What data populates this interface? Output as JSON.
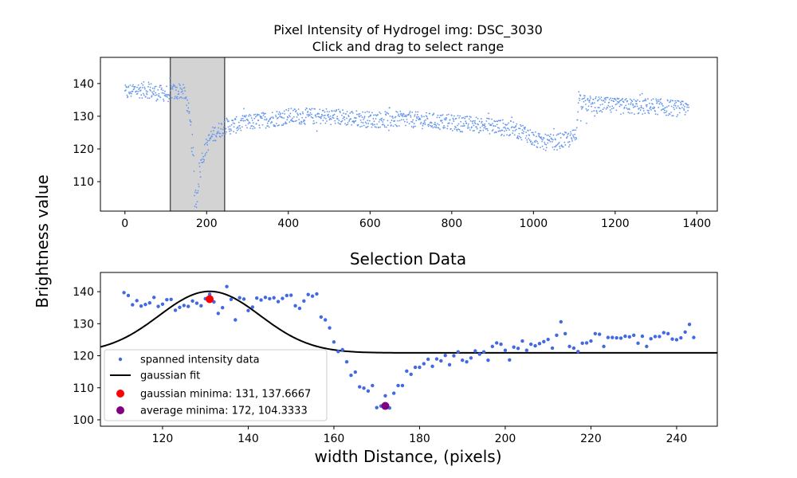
{
  "figure": {
    "title_line1": "Pixel Intensity of Hydrogel img: DSC_3030",
    "title_line2": "Click and drag to select range",
    "shared_ylabel": "Brightness value",
    "background": "#ffffff"
  },
  "chart_data": [
    {
      "type": "scatter",
      "xlim": [
        -60,
        1450
      ],
      "ylim": [
        101,
        148
      ],
      "xticks": [
        0,
        200,
        400,
        600,
        800,
        1000,
        1200,
        1400
      ],
      "yticks": [
        110,
        120,
        130,
        140
      ],
      "point_color": "#6495ed",
      "selection_span": {
        "x": [
          111,
          244
        ],
        "color": "#d3d3d3"
      },
      "series": [
        {
          "values_profile": [
            [
              0,
              137
            ],
            [
              20,
              138
            ],
            [
              40,
              138
            ],
            [
              60,
              138
            ],
            [
              80,
              137
            ],
            [
              100,
              137
            ],
            [
              108,
              137
            ],
            [
              111,
              138
            ],
            [
              125,
              137
            ],
            [
              135,
              138
            ],
            [
              145,
              137
            ],
            [
              152,
              134
            ],
            [
              158,
              129
            ],
            [
              163,
              124
            ],
            [
              167,
              117
            ],
            [
              170,
              108
            ],
            [
              172,
              104
            ],
            [
              176,
              106
            ],
            [
              180,
              111
            ],
            [
              186,
              115
            ],
            [
              192,
              118
            ],
            [
              200,
              121
            ],
            [
              212,
              124
            ],
            [
              222,
              125
            ],
            [
              234,
              126
            ],
            [
              244,
              127
            ],
            [
              260,
              127
            ],
            [
              300,
              128
            ],
            [
              400,
              130
            ],
            [
              500,
              130
            ],
            [
              600,
              129
            ],
            [
              700,
              129
            ],
            [
              800,
              128
            ],
            [
              900,
              127
            ],
            [
              950,
              126
            ],
            [
              980,
              125
            ],
            [
              1000,
              123
            ],
            [
              1020,
              122
            ],
            [
              1050,
              122
            ],
            [
              1090,
              123
            ],
            [
              1105,
              124
            ],
            [
              1110,
              136
            ],
            [
              1120,
              134
            ],
            [
              1200,
              133
            ],
            [
              1300,
              133
            ],
            [
              1380,
              132
            ]
          ]
        }
      ]
    },
    {
      "type": "scatter",
      "title": "Selection Data",
      "xlabel": "width Distance, (pixels)",
      "xlim": [
        105.5,
        249.5
      ],
      "ylim": [
        98,
        146
      ],
      "xticks": [
        120,
        140,
        160,
        180,
        200,
        220,
        240
      ],
      "yticks": [
        100,
        110,
        120,
        130,
        140
      ],
      "legend_position": "lower-left",
      "series": [
        {
          "name": "spanned intensity data",
          "color": "#4169e1",
          "x": [
            111,
            112,
            113,
            114,
            115,
            116,
            117,
            118,
            119,
            120,
            121,
            122,
            123,
            124,
            125,
            126,
            127,
            128,
            129,
            130,
            131,
            132,
            133,
            134,
            135,
            136,
            137,
            138,
            139,
            140,
            141,
            142,
            143,
            144,
            145,
            146,
            147,
            148,
            149,
            150,
            151,
            152,
            153,
            154,
            155,
            156,
            157,
            158,
            159,
            160,
            161,
            162,
            163,
            164,
            165,
            166,
            167,
            168,
            169,
            170,
            171,
            172,
            173,
            174,
            175,
            176,
            177,
            178,
            179,
            180,
            181,
            182,
            183,
            184,
            185,
            186,
            187,
            188,
            189,
            190,
            191,
            192,
            193,
            194,
            195,
            196,
            197,
            198,
            199,
            200,
            201,
            202,
            203,
            204,
            205,
            206,
            207,
            208,
            209,
            210,
            211,
            212,
            213,
            214,
            215,
            216,
            217,
            218,
            219,
            220,
            221,
            222,
            223,
            224,
            225,
            226,
            227,
            228,
            229,
            230,
            231,
            232,
            233,
            234,
            235,
            236,
            237,
            238,
            239,
            240,
            241,
            242,
            243,
            244
          ],
          "y": [
            139.7,
            138.8,
            135.9,
            137.2,
            135.5,
            136.0,
            136.5,
            138.2,
            135.4,
            136.1,
            137.5,
            137.6,
            134.2,
            135.1,
            135.7,
            135.4,
            137.1,
            136.4,
            135.6,
            137.8,
            139.2,
            136.8,
            133.2,
            135.0,
            141.6,
            137.6,
            131.2,
            138.1,
            137.7,
            134.1,
            135.2,
            138.0,
            137.4,
            138.2,
            137.8,
            138.1,
            136.9,
            137.9,
            138.8,
            138.9,
            135.6,
            134.8,
            137.1,
            139.1,
            138.6,
            139.3,
            132.1,
            131.2,
            128.7,
            124.3,
            121.3,
            121.9,
            118.1,
            113.9,
            114.9,
            110.3,
            109.9,
            109.0,
            110.7,
            103.8,
            104.3,
            107.5,
            103.7,
            108.3,
            110.7,
            110.7,
            115.2,
            114.2,
            116.4,
            116.4,
            117.5,
            118.9,
            116.7,
            119.0,
            118.4,
            120.1,
            117.2,
            120.0,
            121.2,
            118.6,
            118.1,
            119.3,
            121.5,
            120.5,
            121.2,
            118.6,
            122.9,
            124.0,
            123.6,
            121.7,
            118.7,
            122.7,
            122.3,
            124.6,
            121.7,
            123.6,
            123.1,
            123.8,
            124.4,
            125.1,
            122.4,
            126.4,
            130.6,
            126.9,
            122.9,
            122.4,
            121.3,
            123.9,
            124.0,
            124.6,
            126.9,
            126.7,
            122.9,
            125.7,
            125.7,
            125.6,
            125.5,
            126.1,
            125.9,
            126.4,
            123.9,
            126.1,
            122.9,
            125.3,
            126.0,
            126.0,
            127.2,
            126.9,
            125.2,
            125.0,
            125.6,
            127.4,
            129.8,
            125.7
          ]
        },
        {
          "name": "gaussian fit",
          "color": "#000000",
          "fit": {
            "amplitude": 19.2,
            "center": 131,
            "sigma": 11.8,
            "baseline": 120.9
          }
        },
        {
          "name": "gaussian minima: 131, 137.6667",
          "color": "#ff0000",
          "x": [
            131
          ],
          "y": [
            137.6667
          ]
        },
        {
          "name": "average minima: 172, 104.3333",
          "color": "#800080",
          "x": [
            172
          ],
          "y": [
            104.3333
          ]
        }
      ]
    }
  ]
}
